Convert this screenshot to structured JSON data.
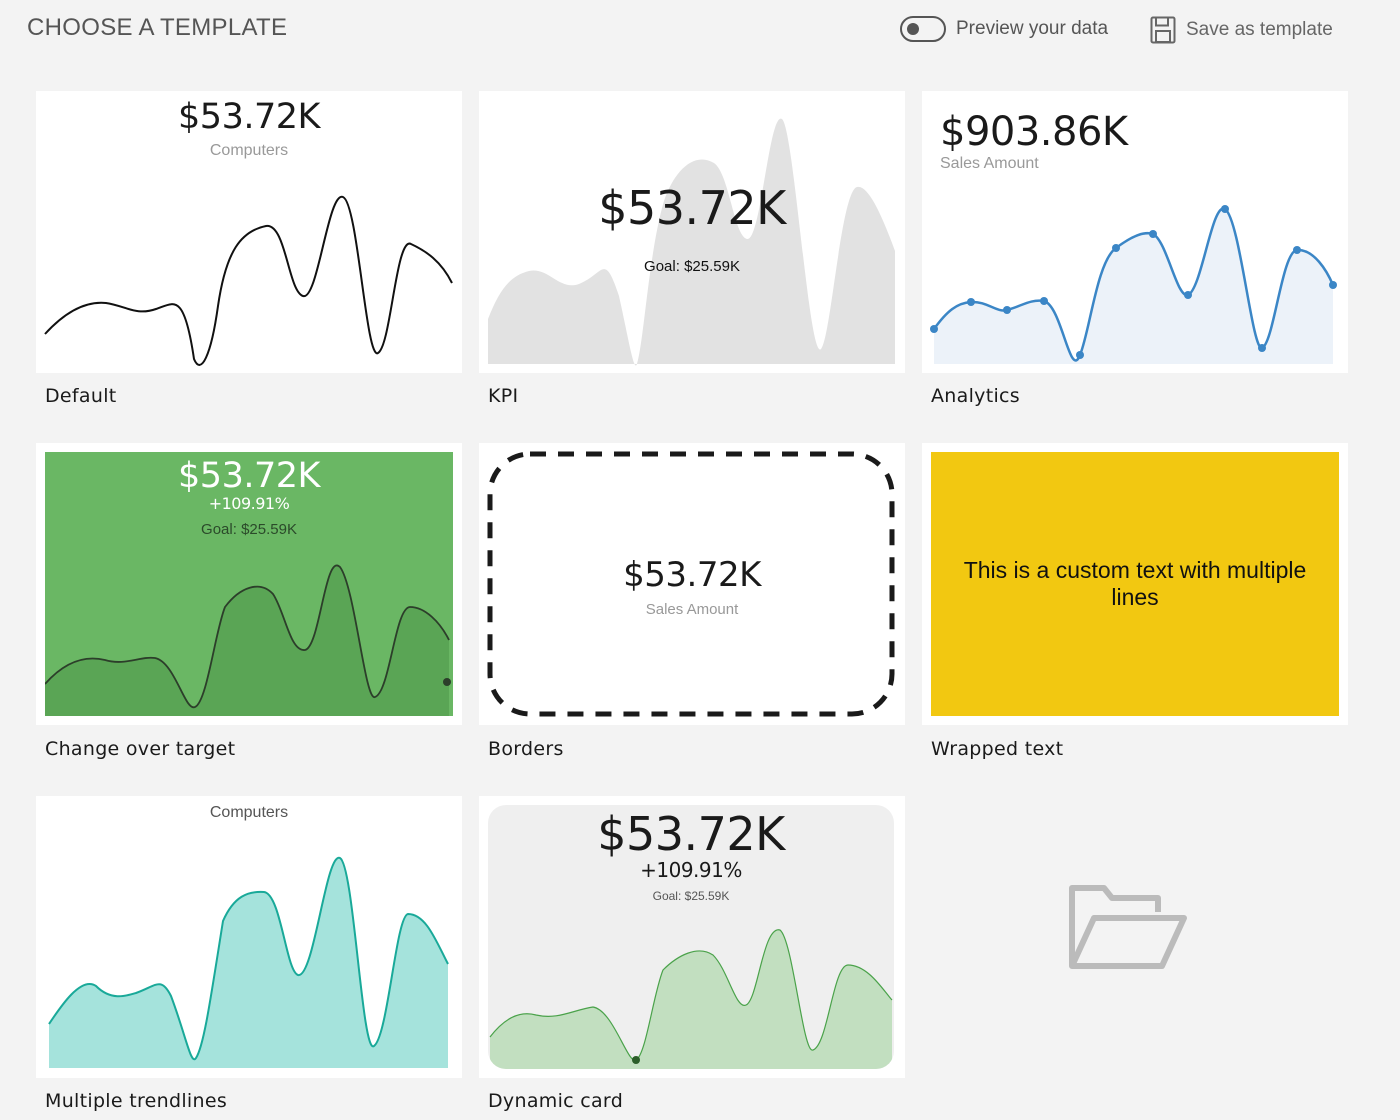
{
  "header": {
    "title": "CHOOSE A TEMPLATE",
    "preview_label": "Preview your data",
    "preview_on": false,
    "save_label": "Save as template"
  },
  "templates": [
    {
      "name": "Default",
      "value": "$53.72K",
      "subtitle": "Computers"
    },
    {
      "name": "KPI",
      "value": "$53.72K",
      "goal": "Goal: $25.59K"
    },
    {
      "name": "Analytics",
      "value": "$903.86K",
      "subtitle": "Sales Amount"
    },
    {
      "name": "Change over target",
      "value": "$53.72K",
      "change": "+109.91%",
      "goal": "Goal: $25.59K"
    },
    {
      "name": "Borders",
      "value": "$53.72K",
      "subtitle": "Sales Amount"
    },
    {
      "name": "Wrapped text",
      "text": "This is a custom text with multiple lines"
    },
    {
      "name": "Multiple trendlines",
      "subtitle": "Computers"
    },
    {
      "name": "Dynamic card",
      "value": "$53.72K",
      "change": "+109.91%",
      "goal": "Goal: $25.59K"
    }
  ],
  "open_folder": {
    "icon": "folder-open-icon"
  },
  "colors": {
    "green": "#6ab764",
    "yellow": "#f2c811",
    "analytics_line": "#3b86c6",
    "teal_line": "#19a999",
    "teal_fill": "#a5e3dc"
  }
}
